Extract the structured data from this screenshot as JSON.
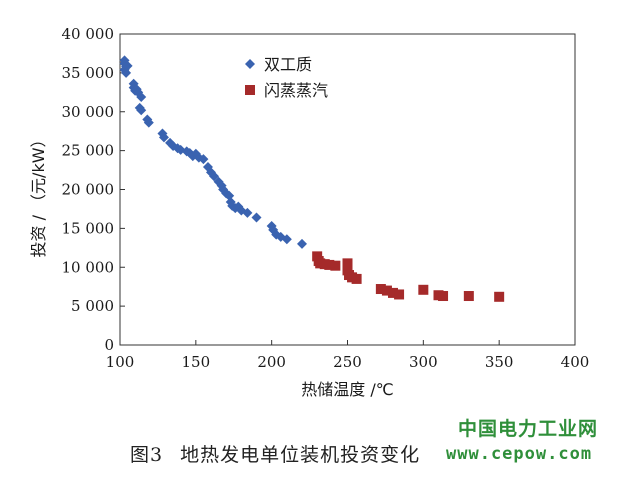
{
  "chart_data": {
    "type": "scatter",
    "xlabel": "热储温度 /℃",
    "ylabel": "投资 / （元/kW）",
    "xlim": [
      100,
      400
    ],
    "ylim": [
      0,
      40000
    ],
    "x_ticks": [
      "100",
      "150",
      "200",
      "250",
      "300",
      "350",
      "400"
    ],
    "y_ticks": [
      "0",
      "5 000",
      "10 000",
      "15 000",
      "20 000",
      "25 000",
      "30 000",
      "35 000",
      "40 000"
    ],
    "x_tick_values": [
      100,
      150,
      200,
      250,
      300,
      350,
      400
    ],
    "y_tick_values": [
      0,
      5000,
      10000,
      15000,
      20000,
      25000,
      30000,
      35000,
      40000
    ],
    "grid": false,
    "legend_position": "top-center",
    "series": [
      {
        "name": "双工质",
        "marker": "diamond",
        "color": "#3a63b0",
        "points": [
          [
            103,
            36600
          ],
          [
            103,
            36200
          ],
          [
            104,
            35800
          ],
          [
            103,
            35400
          ],
          [
            104,
            35000
          ],
          [
            105,
            35900
          ],
          [
            109,
            33600
          ],
          [
            109,
            33100
          ],
          [
            110,
            32700
          ],
          [
            111,
            32900
          ],
          [
            112,
            32500
          ],
          [
            114,
            31900
          ],
          [
            113,
            30500
          ],
          [
            114,
            30200
          ],
          [
            118,
            29000
          ],
          [
            119,
            28600
          ],
          [
            128,
            27200
          ],
          [
            129,
            26700
          ],
          [
            133,
            26000
          ],
          [
            135,
            25600
          ],
          [
            138,
            25300
          ],
          [
            140,
            25100
          ],
          [
            144,
            24900
          ],
          [
            146,
            24700
          ],
          [
            148,
            24300
          ],
          [
            150,
            24600
          ],
          [
            152,
            24100
          ],
          [
            155,
            23900
          ],
          [
            158,
            22900
          ],
          [
            160,
            22200
          ],
          [
            162,
            21700
          ],
          [
            165,
            21000
          ],
          [
            167,
            20500
          ],
          [
            168,
            20000
          ],
          [
            170,
            19500
          ],
          [
            172,
            19200
          ],
          [
            173,
            18400
          ],
          [
            174,
            17900
          ],
          [
            176,
            17600
          ],
          [
            178,
            17800
          ],
          [
            180,
            17300
          ],
          [
            184,
            17000
          ],
          [
            190,
            16400
          ],
          [
            200,
            15300
          ],
          [
            201,
            14800
          ],
          [
            203,
            14200
          ],
          [
            206,
            13900
          ],
          [
            210,
            13600
          ],
          [
            220,
            13000
          ]
        ]
      },
      {
        "name": "闪蒸蒸汽",
        "marker": "square",
        "color": "#a52a2a",
        "points": [
          [
            230,
            11400
          ],
          [
            231,
            10800
          ],
          [
            232,
            10500
          ],
          [
            235,
            10400
          ],
          [
            238,
            10300
          ],
          [
            242,
            10200
          ],
          [
            250,
            10500
          ],
          [
            250,
            9600
          ],
          [
            251,
            9000
          ],
          [
            253,
            8700
          ],
          [
            256,
            8500
          ],
          [
            272,
            7200
          ],
          [
            276,
            7000
          ],
          [
            280,
            6700
          ],
          [
            284,
            6500
          ],
          [
            300,
            7100
          ],
          [
            310,
            6400
          ],
          [
            313,
            6300
          ],
          [
            330,
            6300
          ],
          [
            350,
            6200
          ]
        ]
      }
    ]
  },
  "caption": {
    "figure_no": "图3",
    "title": "地热发电单位装机投资变化"
  },
  "watermark": {
    "site_name": "中国电力工业网",
    "url": "www.cepow.com"
  }
}
